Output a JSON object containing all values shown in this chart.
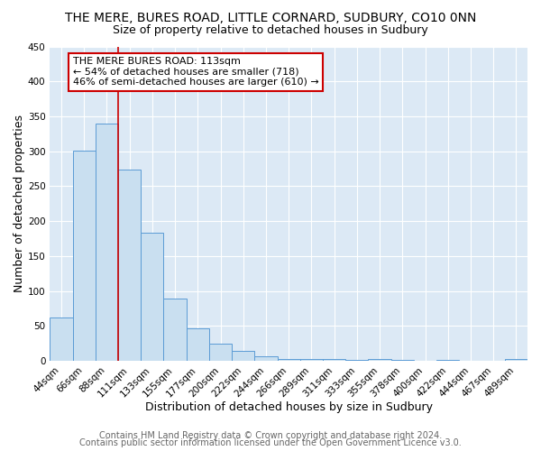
{
  "title": "THE MERE, BURES ROAD, LITTLE CORNARD, SUDBURY, CO10 0NN",
  "subtitle": "Size of property relative to detached houses in Sudbury",
  "xlabel": "Distribution of detached houses by size in Sudbury",
  "ylabel": "Number of detached properties",
  "bar_labels": [
    "44sqm",
    "66sqm",
    "88sqm",
    "111sqm",
    "133sqm",
    "155sqm",
    "177sqm",
    "200sqm",
    "222sqm",
    "244sqm",
    "266sqm",
    "289sqm",
    "311sqm",
    "333sqm",
    "355sqm",
    "378sqm",
    "400sqm",
    "422sqm",
    "444sqm",
    "467sqm",
    "489sqm"
  ],
  "bar_values": [
    62,
    301,
    340,
    274,
    184,
    89,
    46,
    24,
    14,
    7,
    2,
    2,
    2,
    1,
    2,
    1,
    0,
    1,
    0,
    0,
    2
  ],
  "bar_color": "#c9dff0",
  "bar_edge_color": "#5b9bd5",
  "ylim": [
    0,
    450
  ],
  "yticks": [
    0,
    50,
    100,
    150,
    200,
    250,
    300,
    350,
    400,
    450
  ],
  "annotation_title": "THE MERE BURES ROAD: 113sqm",
  "annotation_line1": "← 54% of detached houses are smaller (718)",
  "annotation_line2": "46% of semi-detached houses are larger (610) →",
  "annotation_box_color": "#ffffff",
  "annotation_box_edge_color": "#cc0000",
  "red_line_x": 2.5,
  "footer1": "Contains HM Land Registry data © Crown copyright and database right 2024.",
  "footer2": "Contains public sector information licensed under the Open Government Licence v3.0.",
  "fig_bg_color": "#ffffff",
  "plot_bg_color": "#dce9f5",
  "grid_color": "#ffffff",
  "title_fontsize": 10,
  "subtitle_fontsize": 9,
  "axis_label_fontsize": 9,
  "tick_fontsize": 7.5,
  "footer_fontsize": 7
}
